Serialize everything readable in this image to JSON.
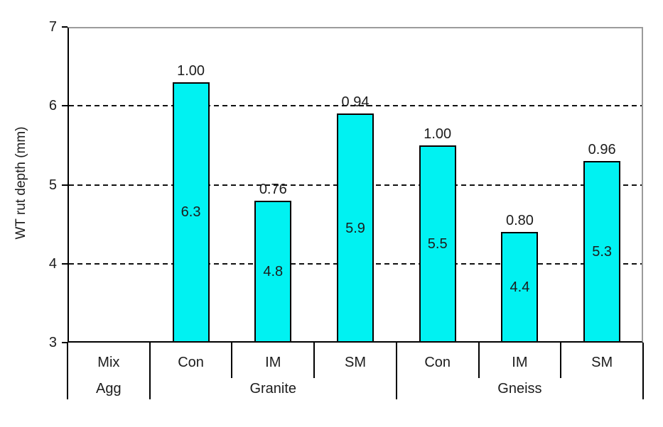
{
  "chart_data": {
    "type": "bar",
    "title": "",
    "ylabel": "WT rut depth (mm)",
    "xlabel": "",
    "ylim": [
      3,
      7
    ],
    "yticks": [
      3,
      4,
      5,
      6,
      7
    ],
    "grid": "horizontal dashed lines at 4, 5 and 6",
    "legend": "none",
    "bar_fill_color": "#00F2F2",
    "bar_border_color": "#000000",
    "text_color": "#1c1c1c",
    "plot_border_color": "#9b9b9b",
    "row_headers": {
      "mix": "Mix",
      "agg": "Agg"
    },
    "categories": [
      "Con",
      "IM",
      "SM",
      "Con",
      "IM",
      "SM"
    ],
    "groups": [
      {
        "agg_label": "Granite",
        "bars": [
          {
            "mix_label": "Con",
            "value": 6.3,
            "value_label": "6.3",
            "ratio_label": "1.00"
          },
          {
            "mix_label": "IM",
            "value": 4.8,
            "value_label": "4.8",
            "ratio_label": "0.76"
          },
          {
            "mix_label": "SM",
            "value": 5.9,
            "value_label": "5.9",
            "ratio_label": "0.94"
          }
        ]
      },
      {
        "agg_label": "Gneiss",
        "bars": [
          {
            "mix_label": "Con",
            "value": 5.5,
            "value_label": "5.5",
            "ratio_label": "1.00"
          },
          {
            "mix_label": "IM",
            "value": 4.4,
            "value_label": "4.4",
            "ratio_label": "0.80"
          },
          {
            "mix_label": "SM",
            "value": 5.3,
            "value_label": "5.3",
            "ratio_label": "0.96"
          }
        ]
      }
    ]
  }
}
